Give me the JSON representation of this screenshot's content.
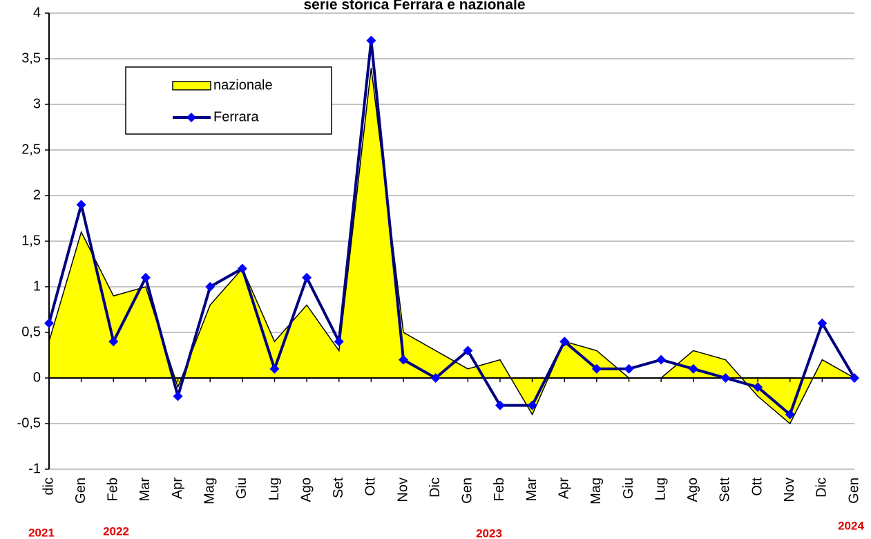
{
  "chart_data": {
    "type": "area-line",
    "title": "serie storica Ferrara e nazionale",
    "categories": [
      "dic",
      "Gen",
      "Feb",
      "Mar",
      "Apr",
      "Mag",
      "Giu",
      "Lug",
      "Ago",
      "Set",
      "Ott",
      "Nov",
      "Dic",
      "Gen",
      "Feb",
      "Mar",
      "Apr",
      "Mag",
      "Giu",
      "Lug",
      "Ago",
      "Sett",
      "Ott",
      "Nov",
      "Dic",
      "Gen"
    ],
    "series": [
      {
        "name": "nazionale",
        "kind": "area",
        "color": "#ffff00",
        "values": [
          0.4,
          1.6,
          0.9,
          1.0,
          -0.1,
          0.8,
          1.2,
          0.4,
          0.8,
          0.3,
          3.4,
          0.5,
          0.3,
          0.1,
          0.2,
          -0.4,
          0.4,
          0.3,
          0.0,
          0.0,
          0.3,
          0.2,
          -0.2,
          -0.5,
          0.2,
          0.0
        ]
      },
      {
        "name": "Ferrara",
        "kind": "line",
        "color": "#000080",
        "marker_color": "#0000ff",
        "values": [
          0.6,
          1.9,
          0.4,
          1.1,
          -0.2,
          1.0,
          1.2,
          0.1,
          1.1,
          0.4,
          3.7,
          0.2,
          0.0,
          0.3,
          -0.3,
          -0.3,
          0.4,
          0.1,
          0.1,
          0.2,
          0.1,
          0.0,
          -0.1,
          -0.4,
          0.6,
          0.0
        ]
      }
    ],
    "annotations": [
      "2021",
      "2022",
      "2023",
      "2024"
    ],
    "ylim": [
      -1,
      4
    ],
    "yticks": [
      -1,
      {
        "value": -0.5,
        "label": "-0,5"
      },
      0,
      {
        "value": 0.5,
        "label": "0,5"
      },
      1,
      {
        "value": 1.5,
        "label": "1,5"
      },
      2,
      {
        "value": 2.5,
        "label": "2,5"
      },
      3,
      {
        "value": 3.5,
        "label": "3,5"
      },
      4
    ],
    "grid": true
  }
}
